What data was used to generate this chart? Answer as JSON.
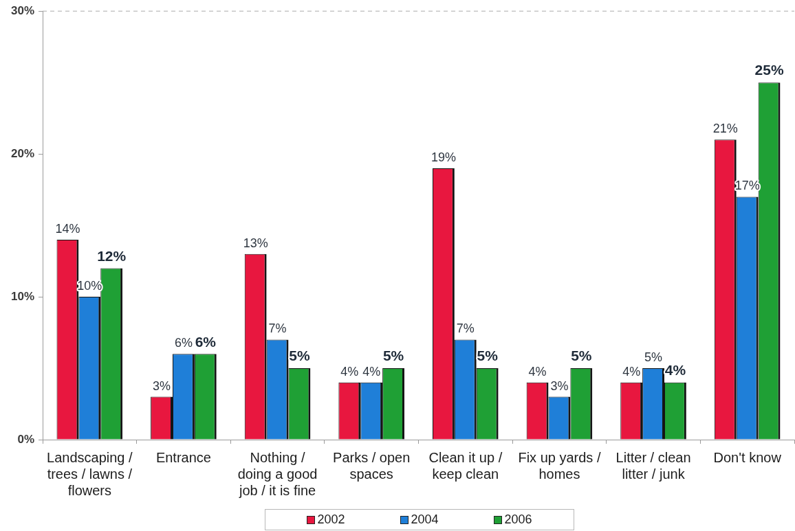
{
  "chart_data": {
    "type": "bar",
    "categories": [
      "Landscaping / trees / lawns / flowers",
      "Entrance",
      "Nothing / doing a good job / it is fine",
      "Parks / open spaces",
      "Clean it up / keep clean",
      "Fix up yards / homes",
      "Litter / clean litter / junk",
      "Don't know"
    ],
    "series": [
      {
        "name": "2002",
        "color": "#e8173f",
        "values": [
          14,
          3,
          13,
          4,
          19,
          4,
          4,
          21
        ],
        "value_labels": [
          "14%",
          "3%",
          "13%",
          "4%",
          "19%",
          "4%",
          "4%",
          "21%"
        ]
      },
      {
        "name": "2004",
        "color": "#1f7fd8",
        "values": [
          10,
          6,
          7,
          4,
          7,
          3,
          5,
          17
        ],
        "value_labels": [
          "10%",
          "6%",
          "7%",
          "4%",
          "7%",
          "3%",
          "5%",
          "17%"
        ]
      },
      {
        "name": "2006",
        "color": "#1fa035",
        "values": [
          12,
          6,
          5,
          5,
          5,
          5,
          4,
          25
        ],
        "value_labels": [
          "12%",
          "6%",
          "5%",
          "5%",
          "5%",
          "5%",
          "4%",
          "25%"
        ]
      }
    ],
    "ylim": [
      0,
      30
    ],
    "yticks": [
      {
        "value": 0,
        "label": "0%"
      },
      {
        "value": 10,
        "label": "10%"
      },
      {
        "value": 20,
        "label": "20%"
      },
      {
        "value": 30,
        "label": "30%"
      }
    ],
    "ref_lines": [
      {
        "axis": "y",
        "value": 30,
        "color": "#aaaaaa",
        "line_style": "dashed"
      }
    ],
    "legend": "bottom"
  }
}
